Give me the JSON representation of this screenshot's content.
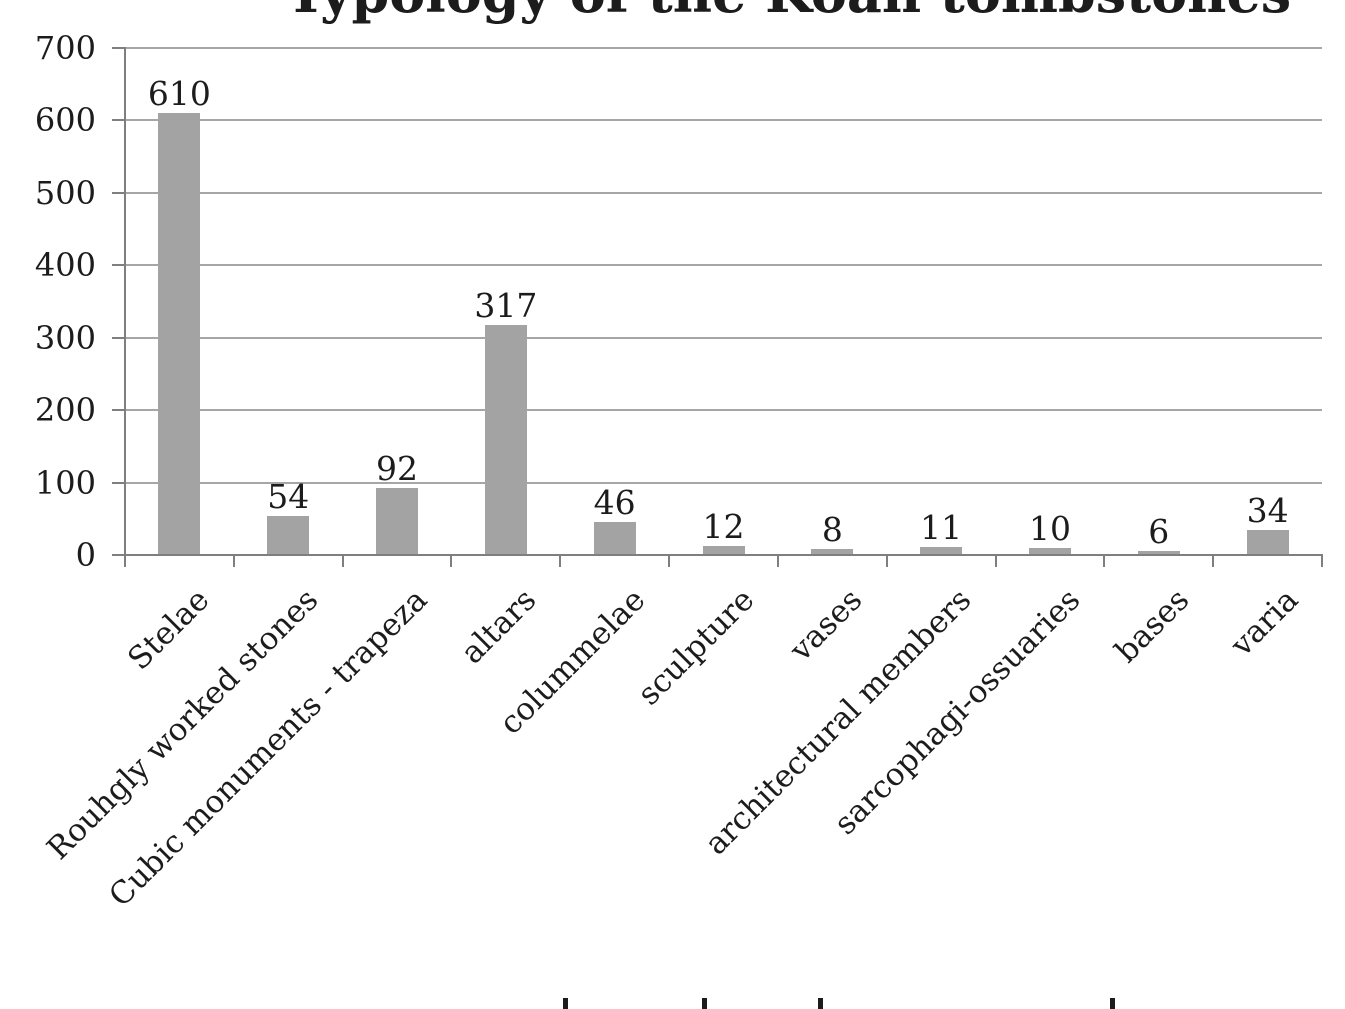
{
  "chart_data": {
    "type": "bar",
    "title": "Typology of the Koan tombstones",
    "categories": [
      "Stelae",
      "Rouhgly worked stones",
      "Cubic monuments - trapeza",
      "altars",
      "colummelae",
      "sculpture",
      "vases",
      "architectural members",
      "sarcophagi-ossuaries",
      "bases",
      "varia"
    ],
    "values": [
      610,
      54,
      92,
      317,
      46,
      12,
      8,
      11,
      10,
      6,
      34
    ],
    "data_labels": [
      610,
      54,
      92,
      317,
      46,
      12,
      8,
      11,
      10,
      6,
      34
    ],
    "xlabel": "",
    "ylabel": "",
    "ylim": [
      0,
      700
    ],
    "yticks": [
      0,
      100,
      200,
      300,
      400,
      500,
      600,
      700
    ],
    "grid": "horizontal",
    "legend": "none",
    "bar_color": "#a3a3a3",
    "gridline_color": "#a6a6a6",
    "axis_color": "#7f7f7f",
    "text_color": "#1c1c1c"
  },
  "cutoff_caption": {
    "description": "tops of letters of a caption line clipped at the bottom edge of the image",
    "fragment_x_positions": [
      563,
      702,
      818,
      1110
    ]
  }
}
